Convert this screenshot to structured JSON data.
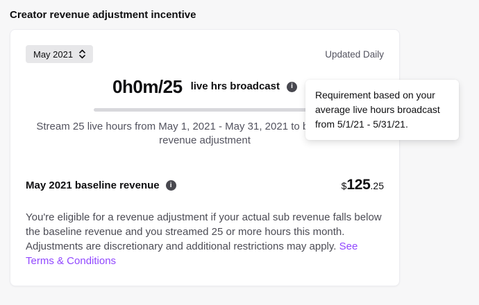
{
  "header": {
    "title": "Creator revenue adjustment incentive"
  },
  "card": {
    "month_select": {
      "value": "May 2021"
    },
    "updated_label": "Updated Daily",
    "stat": {
      "value": "0h0m/25",
      "unit_label": "live hrs broadcast"
    },
    "progress_percent": 0,
    "subtitle": "Stream 25 live hours from May 1, 2021 - May 31, 2021 to be eligible for a revenue adjustment",
    "baseline": {
      "label": "May 2021 baseline revenue",
      "currency": "$",
      "dollars": "125",
      "cents": ".25"
    },
    "eligibility_text": "You're eligible for a revenue adjustment if your actual sub revenue falls below the baseline revenue and you streamed 25 or more hours this month. Adjustments are discretionary and additional restrictions may apply. ",
    "terms_link": "See Terms & Conditions"
  },
  "tooltip": {
    "text": "Requirement based on your average live hours broadcast from 5/1/21 - 5/31/21."
  },
  "icons": {
    "info_glyph": "i"
  },
  "colors": {
    "accent_purple": "#9147ff",
    "text_primary": "#0e0e10",
    "text_secondary": "#53535f",
    "card_background": "#ffffff",
    "page_background": "#f7f7f8"
  }
}
